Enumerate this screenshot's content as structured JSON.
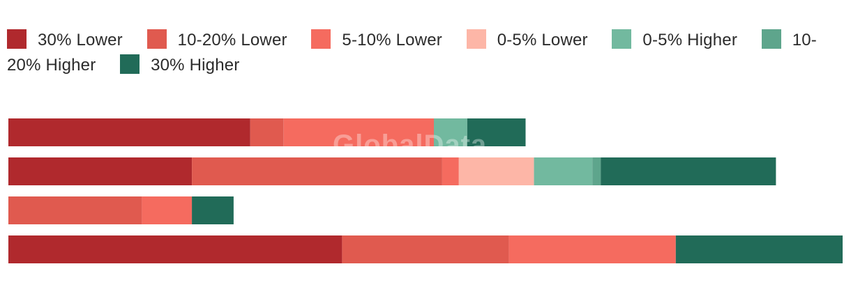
{
  "legend": {
    "items": [
      {
        "label": "30% Lower",
        "color": "#b0292d"
      },
      {
        "label": "10-20% Lower",
        "color": "#e05a4f"
      },
      {
        "label": "5-10% Lower",
        "color": "#f56b5f"
      },
      {
        "label": "0-5% Lower",
        "color": "#fdb6a7"
      },
      {
        "label": "0-5% Higher",
        "color": "#72b99f"
      },
      {
        "label": "10-20% Higher",
        "color": "#5ea58c"
      },
      {
        "label": "30% Higher",
        "color": "#216b58"
      }
    ]
  },
  "watermark": "GlobalData",
  "chart_data": {
    "type": "bar",
    "orientation": "horizontal",
    "stacked": true,
    "categories": [
      "",
      "",
      "",
      ""
    ],
    "series": [
      {
        "name": "30% Lower",
        "color": "#b0292d",
        "values": [
          29,
          22,
          0,
          40
        ]
      },
      {
        "name": "10-20% Lower",
        "color": "#e05a4f",
        "values": [
          4,
          30,
          16,
          20
        ]
      },
      {
        "name": "5-10% Lower",
        "color": "#f56b5f",
        "values": [
          18,
          2,
          6,
          20
        ]
      },
      {
        "name": "0-5% Lower",
        "color": "#fdb6a7",
        "values": [
          0,
          9,
          0,
          0
        ]
      },
      {
        "name": "0-5% Higher",
        "color": "#72b99f",
        "values": [
          4,
          7,
          0,
          0
        ]
      },
      {
        "name": "10-20% Higher",
        "color": "#5ea58c",
        "values": [
          0,
          1,
          0,
          0
        ]
      },
      {
        "name": "30% Higher",
        "color": "#216b58",
        "values": [
          7,
          21,
          5,
          20
        ]
      }
    ],
    "xlim": [
      0,
      100
    ],
    "grid": false,
    "axes_visible": false,
    "legend_position": "top"
  }
}
